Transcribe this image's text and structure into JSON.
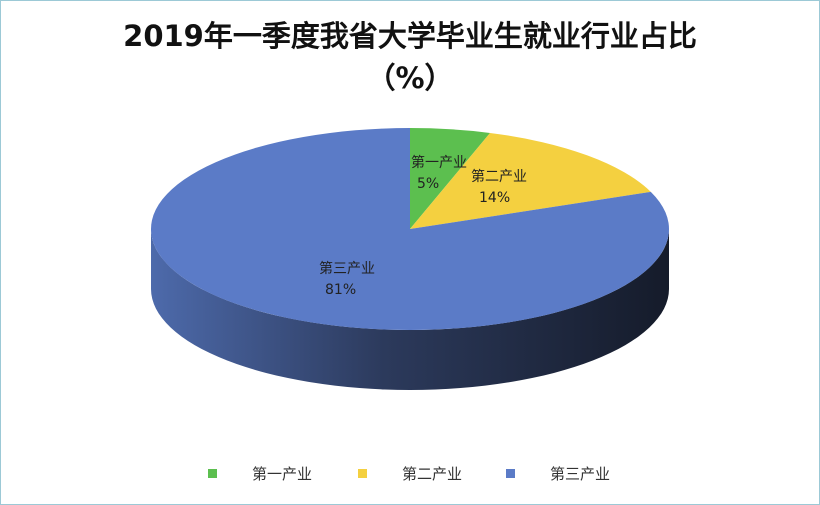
{
  "chart_data": {
    "type": "pie",
    "title_line1": "2019年一季度我省大学毕业生就业行业占比",
    "title_line2": "（%）",
    "style": "3d",
    "start_angle": "top, clockwise",
    "legend_position": "bottom",
    "slices": [
      {
        "label": "第一产业",
        "value": 5,
        "value_label": "5%",
        "color": "#5cbf4f"
      },
      {
        "label": "第二产业",
        "value": 14,
        "value_label": "14%",
        "color": "#f4d040"
      },
      {
        "label": "第三产业",
        "value": 81,
        "value_label": "81%",
        "color": "#5b7bc7"
      }
    ]
  }
}
